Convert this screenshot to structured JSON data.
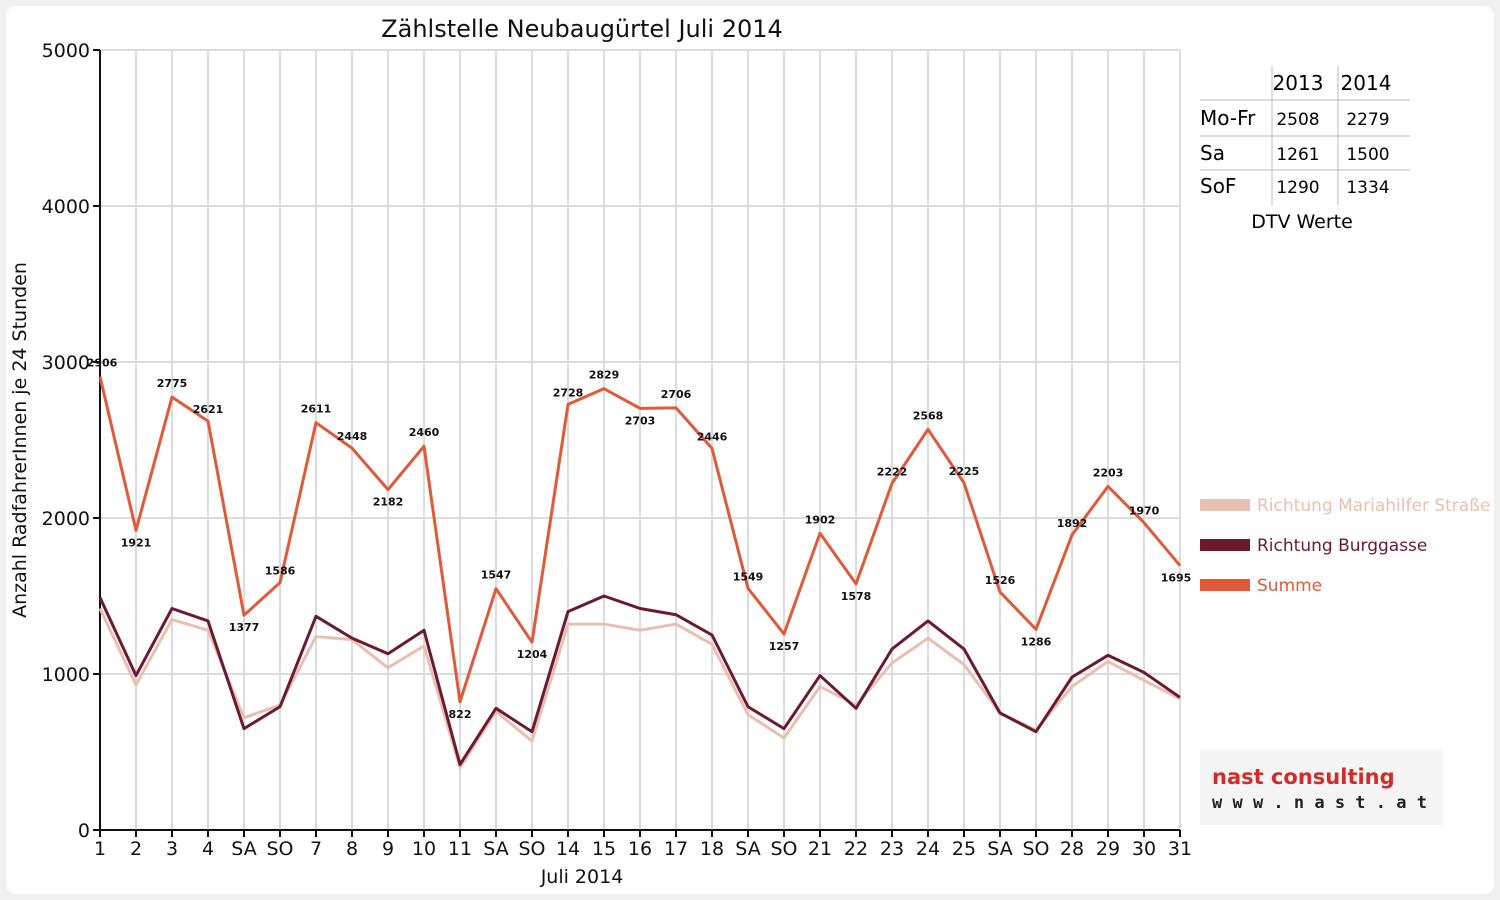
{
  "chart_data": {
    "type": "line",
    "title": "Zählstelle Neubaugürtel Juli 2014",
    "xlabel": "Juli 2014",
    "ylabel": "Anzahl RadfahrerInnen je 24 Stunden",
    "ylim": [
      0,
      5000
    ],
    "yticks": [
      "0",
      "1000",
      "2000",
      "3000",
      "4000",
      "5000"
    ],
    "categories": [
      "1",
      "2",
      "3",
      "4",
      "SA",
      "SO",
      "7",
      "8",
      "9",
      "10",
      "11",
      "SA",
      "SO",
      "14",
      "15",
      "16",
      "17",
      "18",
      "SA",
      "SO",
      "21",
      "22",
      "23",
      "24",
      "25",
      "SA",
      "SO",
      "28",
      "29",
      "30",
      "31"
    ],
    "sunday_color": "#e00000",
    "grid": true,
    "legend_position": "right",
    "series": [
      {
        "name": "Richtung Mariahilfer Straße",
        "color": "#e8c0b0",
        "values": [
          1420,
          930,
          1350,
          1280,
          720,
          800,
          1240,
          1220,
          1040,
          1180,
          400,
          760,
          570,
          1320,
          1320,
          1280,
          1320,
          1190,
          740,
          590,
          920,
          800,
          1070,
          1230,
          1060,
          750,
          640,
          920,
          1080,
          960,
          840
        ]
      },
      {
        "name": "Richtung Burggasse",
        "color": "#6b1a30",
        "values": [
          1490,
          990,
          1420,
          1340,
          650,
          790,
          1370,
          1230,
          1130,
          1280,
          420,
          780,
          630,
          1400,
          1500,
          1420,
          1380,
          1250,
          790,
          650,
          990,
          780,
          1160,
          1340,
          1160,
          750,
          630,
          980,
          1120,
          1010,
          850
        ]
      },
      {
        "name": "Summe",
        "color": "#e05a3a",
        "values": [
          2906,
          1921,
          2775,
          2621,
          1377,
          1586,
          2611,
          2448,
          2182,
          2460,
          822,
          1547,
          1204,
          2728,
          2829,
          2703,
          2706,
          2446,
          1549,
          1257,
          1902,
          1578,
          2222,
          2568,
          2225,
          1526,
          1286,
          1892,
          2203,
          1970,
          1695
        ]
      }
    ],
    "data_labels": [
      "2906",
      "1921",
      "2775",
      "2621",
      "1377",
      "1586",
      "2611",
      "2448",
      "2182",
      "2460",
      "822",
      "1547",
      "1204",
      "2728",
      "2829",
      "2703",
      "2706",
      "2446",
      "1549",
      "1257",
      "1902",
      "1578",
      "2222",
      "2568",
      "2225",
      "1526",
      "1286",
      "1892",
      "2203",
      "1970",
      "1695"
    ]
  },
  "dtv_table": {
    "headers": [
      "",
      "2013",
      "2014"
    ],
    "rows": [
      [
        "Mo-Fr",
        "2508",
        "2279"
      ],
      [
        "Sa",
        "1261",
        "1500"
      ],
      [
        "SoF",
        "1290",
        "1334"
      ]
    ],
    "caption": "DTV Werte"
  },
  "logo": {
    "name": "nast consulting",
    "url": "w w w . n a s t . a t",
    "accent_color": "#d42a2a"
  }
}
